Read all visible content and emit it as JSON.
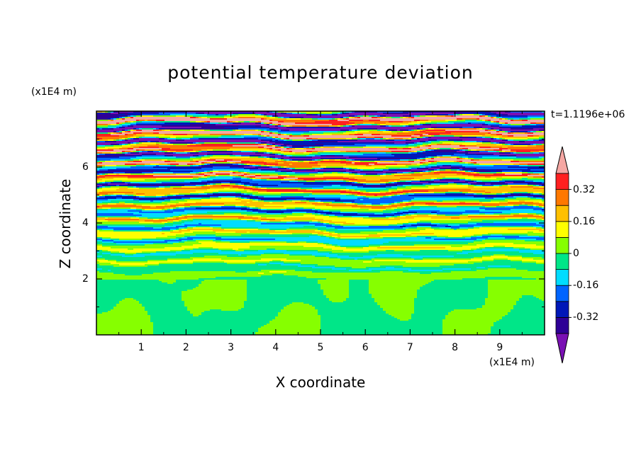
{
  "chart_data": {
    "type": "heatmap",
    "title": "potential temperature deviation",
    "xlabel": "X coordinate",
    "ylabel": "Z coordinate",
    "x_multiplier": "(x1E4 m)",
    "y_multiplier": "(x1E4 m)",
    "time_label": "t=1.1196e+06",
    "xlim": [
      0,
      10
    ],
    "ylim": [
      0,
      8
    ],
    "x_ticks": [
      "1",
      "2",
      "3",
      "4",
      "5",
      "6",
      "7",
      "8",
      "9"
    ],
    "y_ticks": [
      "2",
      "4",
      "6"
    ],
    "colorbar": {
      "levels": [
        -0.48,
        -0.4,
        -0.32,
        -0.24,
        -0.16,
        -0.08,
        0,
        0.08,
        0.16,
        0.24,
        0.32,
        0.4,
        0.48
      ],
      "tick_labels": [
        "-0.32",
        "-0.16",
        "0",
        "0.16",
        "0.32"
      ],
      "tick_values": [
        -0.32,
        -0.16,
        0,
        0.16,
        0.32
      ],
      "colors": [
        "#7a10b4",
        "#2e0096",
        "#0018b8",
        "#0064ff",
        "#00dcff",
        "#00e688",
        "#86ff00",
        "#ffff00",
        "#ffc000",
        "#ff7800",
        "#ff2020",
        "#f5a7a3"
      ]
    }
  }
}
